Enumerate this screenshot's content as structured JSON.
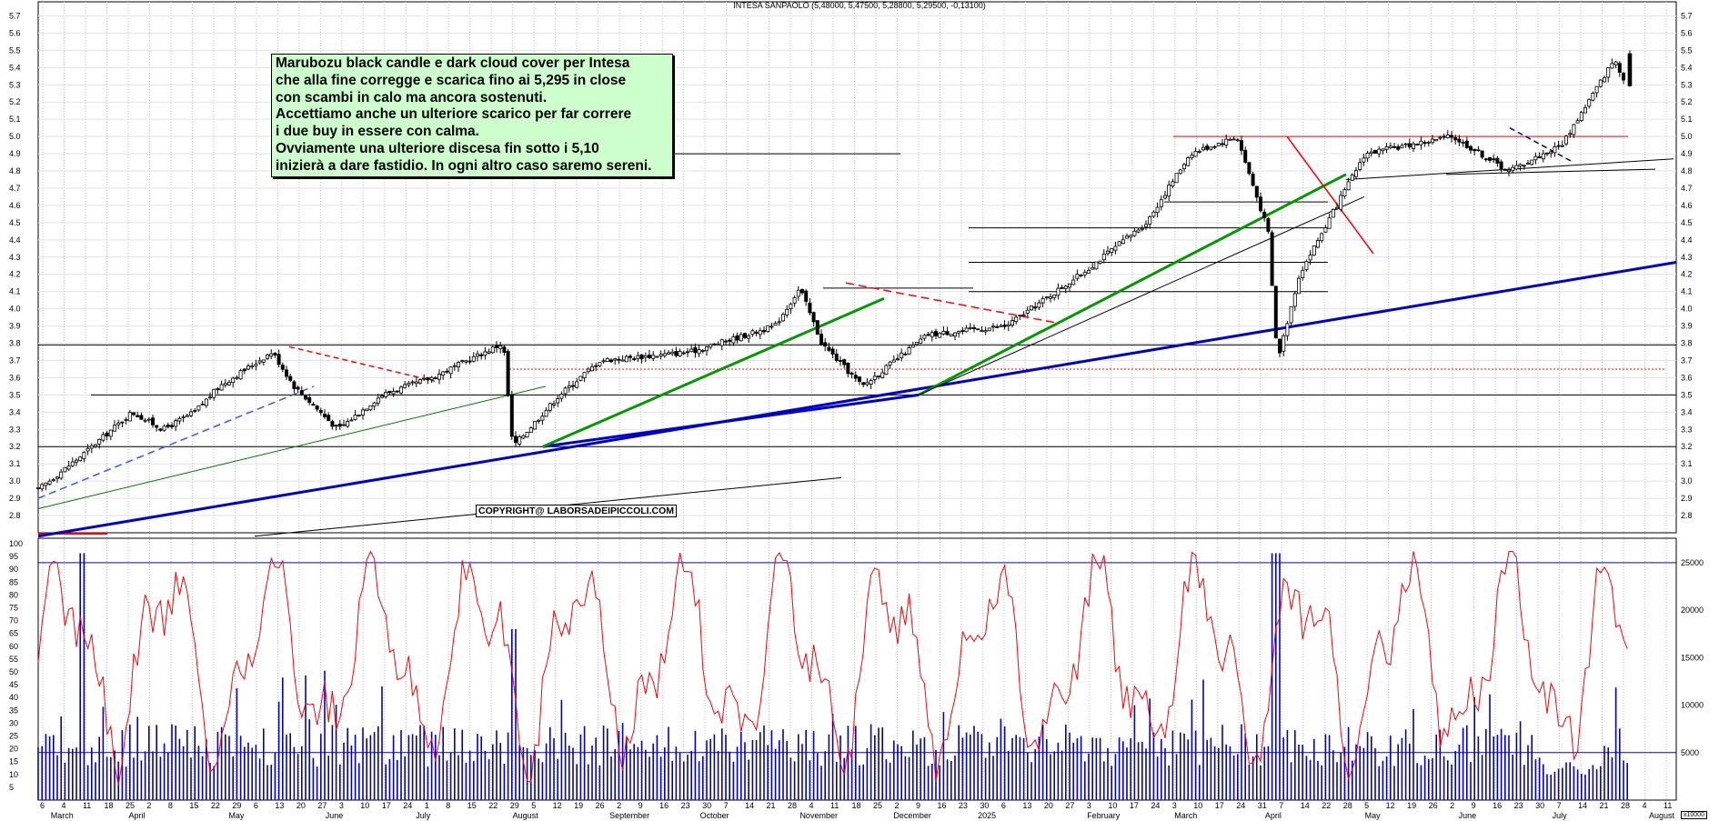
{
  "title": "INTESA SANPAOLO (5,48000, 5,47500, 5,28800, 5,29500, -0,13100)",
  "annotation": {
    "lines": [
      "Marubozu black candle e dark cloud cover per Intesa",
      "che alla fine corregge e scarica fino ai 5,295 in close",
      "con scambi in calo ma ancora sostenuti.",
      "Accettiamo anche un ulteriore scarico per far correre",
      "i due buy in essere con calma.",
      "Ovviamente una ulteriore discesa fin sotto i 5,10",
      "inizierà a dare fastidio. In ogni altro caso saremo sereni."
    ]
  },
  "copyright": "COPYRIGHT@ LABORSADEIPICCOLI.COM",
  "volume_scale_label": "x10000",
  "chart_data": [
    {
      "type": "candlestick",
      "title": "INTESA SANPAOLO (5,48000, 5,47500, 5,28800, 5,29500, -0,13100)",
      "ylim": [
        2.7,
        5.75
      ],
      "yticks": [
        "2.8",
        "2.9",
        "3.0",
        "3.1",
        "3.2",
        "3.3",
        "3.4",
        "3.5",
        "3.6",
        "3.7",
        "3.8",
        "3.9",
        "4.0",
        "4.1",
        "4.2",
        "4.3",
        "4.4",
        "4.5",
        "4.6",
        "4.7",
        "4.8",
        "4.9",
        "5.0",
        "5.1",
        "5.2",
        "5.3",
        "5.4",
        "5.5",
        "5.6",
        "5.7"
      ],
      "last": {
        "open": 5.48,
        "high": 5.475,
        "low": 5.288,
        "close": 5.295,
        "change": -0.131
      },
      "close_path": [
        [
          "2024-03-06",
          2.95
        ],
        [
          "2024-03-20",
          3.15
        ],
        [
          "2024-04-05",
          3.4
        ],
        [
          "2024-04-15",
          3.3
        ],
        [
          "2024-04-25",
          3.4
        ],
        [
          "2024-05-03",
          3.55
        ],
        [
          "2024-05-20",
          3.75
        ],
        [
          "2024-05-27",
          3.55
        ],
        [
          "2024-06-10",
          3.3
        ],
        [
          "2024-06-24",
          3.5
        ],
        [
          "2024-07-10",
          3.6
        ],
        [
          "2024-08-02",
          3.8
        ],
        [
          "2024-08-05",
          3.2
        ],
        [
          "2024-08-20",
          3.5
        ],
        [
          "2024-09-02",
          3.7
        ],
        [
          "2024-10-01",
          3.75
        ],
        [
          "2024-10-28",
          3.9
        ],
        [
          "2024-11-05",
          4.12
        ],
        [
          "2024-11-12",
          3.8
        ],
        [
          "2024-11-25",
          3.55
        ],
        [
          "2024-12-16",
          3.85
        ],
        [
          "2025-01-10",
          3.9
        ],
        [
          "2025-02-03",
          4.2
        ],
        [
          "2025-02-24",
          4.5
        ],
        [
          "2025-03-10",
          4.9
        ],
        [
          "2025-03-25",
          5.0
        ],
        [
          "2025-04-04",
          4.45
        ],
        [
          "2025-04-07",
          3.7
        ],
        [
          "2025-04-14",
          4.2
        ],
        [
          "2025-05-05",
          4.9
        ],
        [
          "2025-06-02",
          5.0
        ],
        [
          "2025-06-20",
          4.8
        ],
        [
          "2025-07-07",
          4.95
        ],
        [
          "2025-07-24",
          5.45
        ],
        [
          "2025-07-28",
          5.295
        ]
      ],
      "horizontal_levels": [
        3.2,
        3.5,
        3.65,
        3.79,
        5.0
      ],
      "series": [
        {
          "name": "Volume",
          "unit": "x10000"
        },
        {
          "name": "Oscillator"
        }
      ],
      "x_dates": [
        "6",
        "4",
        "11",
        "18",
        "25",
        "2",
        "8",
        "15",
        "22",
        "29",
        "6",
        "13",
        "20",
        "27",
        "3",
        "10",
        "17",
        "24",
        "1",
        "8",
        "15",
        "22",
        "29",
        "5",
        "12",
        "19",
        "26",
        "2",
        "9",
        "16",
        "23",
        "30",
        "7",
        "14",
        "21",
        "28",
        "4",
        "11",
        "18",
        "25",
        "2",
        "9",
        "16",
        "23",
        "30",
        "6",
        "13",
        "20",
        "27",
        "3",
        "10",
        "17",
        "24",
        "3",
        "10",
        "17",
        "24",
        "31",
        "7",
        "14",
        "22",
        "28",
        "5",
        "12",
        "19",
        "26",
        "2",
        "9",
        "16",
        "23",
        "30",
        "7",
        "14",
        "21",
        "28",
        "4",
        "11"
      ],
      "x_months": [
        "March",
        "April",
        "May",
        "June",
        "July",
        "August",
        "September",
        "October",
        "November",
        "December",
        "2025",
        "February",
        "March",
        "April",
        "May",
        "June",
        "July",
        "August"
      ]
    },
    {
      "type": "bar",
      "name": "Volume",
      "ylim_right": [
        0,
        27000
      ],
      "yticks_right": [
        "5000",
        "10000",
        "15000",
        "20000",
        "25000"
      ],
      "yticks_left": [
        "5",
        "10",
        "15",
        "20",
        "25",
        "30",
        "35",
        "40",
        "45",
        "50",
        "55",
        "60",
        "65",
        "70",
        "75",
        "80",
        "85",
        "90",
        "95",
        "100"
      ],
      "level_lines_right": [
        5000,
        25000
      ]
    },
    {
      "type": "line",
      "name": "Oscillator",
      "ylim": [
        0,
        100
      ]
    }
  ]
}
